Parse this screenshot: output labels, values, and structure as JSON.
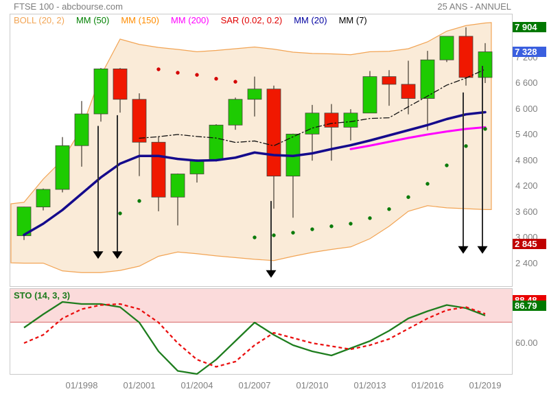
{
  "header": {
    "title": "FTSE 100 - abcbourse.com",
    "period_label": "25 ANS - ANNUEL"
  },
  "legend": [
    {
      "label": "BOLL (20, 2)",
      "color": "#f2a454"
    },
    {
      "label": "MM (50)",
      "color": "#008000"
    },
    {
      "label": "MM (150)",
      "color": "#ff8c00"
    },
    {
      "label": "MM (200)",
      "color": "#ff00ff"
    },
    {
      "label": "SAR (0.02, 0.2)",
      "color": "#e00000"
    },
    {
      "label": "MM (20)",
      "color": "#0000a0"
    },
    {
      "label": "MM (7)",
      "color": "#000000"
    }
  ],
  "chart_data": {
    "type": "candlestick",
    "title": "FTSE 100 annual candlesticks with Bollinger band, moving averages, SAR and stochastic oscillator",
    "years": [
      1995,
      1996,
      1997,
      1998,
      1999,
      2000,
      2001,
      2002,
      2003,
      2004,
      2005,
      2006,
      2007,
      2008,
      2009,
      2010,
      2011,
      2012,
      2013,
      2014,
      2015,
      2016,
      2017,
      2018,
      2019
    ],
    "candles_ohlc": [
      [
        3040,
        3715,
        2940,
        3710
      ],
      [
        3710,
        4140,
        3630,
        4120
      ],
      [
        4120,
        5340,
        4050,
        5140
      ],
      [
        5140,
        6180,
        4650,
        5880
      ],
      [
        5880,
        6950,
        5700,
        6930
      ],
      [
        6930,
        6950,
        5910,
        6220
      ],
      [
        6220,
        6360,
        4430,
        5220
      ],
      [
        5220,
        5360,
        3610,
        3940
      ],
      [
        3940,
        4490,
        3280,
        4480
      ],
      [
        4480,
        4820,
        4280,
        4810
      ],
      [
        4810,
        5640,
        4770,
        5620
      ],
      [
        5620,
        6260,
        5510,
        6220
      ],
      [
        6220,
        6750,
        5820,
        6460
      ],
      [
        6460,
        6540,
        3670,
        4430
      ],
      [
        4430,
        5420,
        3460,
        5410
      ],
      [
        5410,
        6090,
        4790,
        5900
      ],
      [
        5900,
        6110,
        4790,
        5570
      ],
      [
        5570,
        5990,
        5260,
        5900
      ],
      [
        5900,
        6880,
        5900,
        6750
      ],
      [
        6750,
        6900,
        6070,
        6570
      ],
      [
        6570,
        7120,
        5870,
        6240
      ],
      [
        6240,
        7350,
        5500,
        7140
      ],
      [
        7140,
        7690,
        7090,
        7690
      ],
      [
        7690,
        7900,
        6540,
        6730
      ],
      [
        6730,
        7530,
        6600,
        7328
      ]
    ],
    "candle_up_color": "#1ecb02",
    "candle_down_color": "#f01800",
    "bollinger": {
      "fill": "#faebd8",
      "stroke": "#f2a454",
      "points_upper": [
        [
          1994.32,
          3784
        ],
        [
          1995,
          3820
        ],
        [
          1996,
          4360
        ],
        [
          1997,
          4810
        ],
        [
          1998,
          5540
        ],
        [
          1999,
          6776
        ],
        [
          2000,
          7624
        ],
        [
          2001,
          7500
        ],
        [
          2002,
          7430
        ],
        [
          2003,
          7384
        ],
        [
          2004,
          7330
        ],
        [
          2005,
          7360
        ],
        [
          2006,
          7400
        ],
        [
          2007,
          7440
        ],
        [
          2008,
          7390
        ],
        [
          2009,
          7320
        ],
        [
          2010,
          7290
        ],
        [
          2011,
          7280
        ],
        [
          2012,
          7260
        ],
        [
          2013,
          7330
        ],
        [
          2014,
          7340
        ],
        [
          2015,
          7400
        ],
        [
          2016,
          7560
        ],
        [
          2017,
          7810
        ],
        [
          2018,
          7940
        ],
        [
          2019,
          8000
        ],
        [
          2019.32,
          8010
        ]
      ],
      "points_lower": [
        [
          1994.32,
          2408
        ],
        [
          1995,
          2400
        ],
        [
          1996,
          2400
        ],
        [
          1997,
          2220
        ],
        [
          1998,
          2180
        ],
        [
          1999,
          2180
        ],
        [
          2000,
          2230
        ],
        [
          2001,
          2330
        ],
        [
          2002,
          2560
        ],
        [
          2003,
          2660
        ],
        [
          2004,
          2620
        ],
        [
          2005,
          2570
        ],
        [
          2006,
          2530
        ],
        [
          2007,
          2490
        ],
        [
          2008,
          2460
        ],
        [
          2009,
          2560
        ],
        [
          2010,
          2650
        ],
        [
          2011,
          2720
        ],
        [
          2012,
          2780
        ],
        [
          2013,
          2970
        ],
        [
          2014,
          3260
        ],
        [
          2015,
          3610
        ],
        [
          2016,
          3740
        ],
        [
          2017,
          3690
        ],
        [
          2018,
          3670
        ],
        [
          2019,
          3650
        ],
        [
          2019.32,
          3650
        ]
      ]
    },
    "mm20": {
      "color": "#140a8c",
      "width": 3.5,
      "start_year": 1995,
      "values": [
        3060,
        3320,
        3640,
        4020,
        4400,
        4720,
        4900,
        4900,
        4830,
        4790,
        4800,
        4860,
        4980,
        4920,
        4900,
        4960,
        5060,
        5150,
        5260,
        5380,
        5500,
        5620,
        5760,
        5870,
        5920
      ]
    },
    "mm200": {
      "color": "#ff00ff",
      "width": 3,
      "start_year": 2012,
      "values": [
        5060,
        5140,
        5230,
        5320,
        5400,
        5470,
        5530,
        5570
      ]
    },
    "mm7": {
      "color": "#111111",
      "width": 1.3,
      "start_year": 2001,
      "values": [
        5313,
        5349,
        5400,
        5354,
        5317,
        5215,
        5249,
        5137,
        5347,
        5550,
        5659,
        5699,
        5774,
        5790,
        6048,
        6295,
        6551,
        6716,
        6920
      ]
    },
    "sar": {
      "red_color": "#d40000",
      "green_color": "#0b7b0b",
      "red": [
        [
          2002,
          6920
        ],
        [
          2003,
          6840
        ],
        [
          2004,
          6790
        ],
        [
          2005,
          6700
        ],
        [
          2006,
          6630
        ]
      ],
      "green": [
        [
          2000,
          3560
        ],
        [
          2001,
          3850
        ],
        [
          2007,
          3000
        ],
        [
          2008,
          3050
        ],
        [
          2009,
          3110
        ],
        [
          2010,
          3190
        ],
        [
          2011,
          3260
        ],
        [
          2012,
          3320
        ],
        [
          2013,
          3450
        ],
        [
          2014,
          3660
        ],
        [
          2015,
          3940
        ],
        [
          2016,
          4250
        ],
        [
          2017,
          4680
        ],
        [
          2018,
          5130
        ],
        [
          2019,
          5530
        ]
      ]
    },
    "arrows": [
      [
        1999,
        5600,
        2500
      ],
      [
        2000,
        5850,
        2500
      ],
      [
        2008,
        3850,
        2060
      ],
      [
        2018,
        6380,
        2620
      ],
      [
        2019,
        7000,
        2620
      ]
    ],
    "y_axis": {
      "range": [
        1850,
        8050
      ],
      "ticks": [
        {
          "value": 7200,
          "label": "7 200"
        },
        {
          "value": 6600,
          "label": "6 600"
        },
        {
          "value": 6000,
          "label": "6 000"
        },
        {
          "value": 5400,
          "label": "5 400"
        },
        {
          "value": 4800,
          "label": "4 800"
        },
        {
          "value": 4200,
          "label": "4 200"
        },
        {
          "value": 3600,
          "label": "3 600"
        },
        {
          "value": 3000,
          "label": "3 000"
        },
        {
          "value": 2400,
          "label": "2 400"
        }
      ],
      "badges": [
        {
          "value": 7904,
          "label": "7 904",
          "bg": "#007800"
        },
        {
          "value": 7328,
          "label": "7 328",
          "bg": "#3a5fdf"
        },
        {
          "value": 2845,
          "label": "2 845",
          "bg": "#c00000"
        }
      ]
    },
    "x_axis": {
      "labels": [
        {
          "year": 1998,
          "label": "01/1998"
        },
        {
          "year": 2001,
          "label": "01/2001"
        },
        {
          "year": 2004,
          "label": "01/2004"
        },
        {
          "year": 2007,
          "label": "01/2007"
        },
        {
          "year": 2010,
          "label": "01/2010"
        },
        {
          "year": 2013,
          "label": "01/2013"
        },
        {
          "year": 2016,
          "label": "01/2016"
        },
        {
          "year": 2019,
          "label": "01/2019"
        }
      ]
    },
    "sto": {
      "label": "STO (14, 3, 3)",
      "label_color": "#1b7a1b",
      "zone_fill": "#fbdbdb",
      "overbought_level": 80,
      "start_year": 1995,
      "k_color": "#1e7d1e",
      "d_color": "#ea0f0f",
      "k": [
        75,
        88,
        100,
        98,
        98,
        95,
        80,
        52,
        33,
        30,
        44,
        62,
        80,
        68,
        58,
        52,
        48,
        55,
        62,
        72,
        84,
        91,
        97,
        94,
        86.79
      ],
      "d": [
        60,
        68,
        84,
        93,
        97,
        98,
        93,
        80,
        60,
        44,
        37,
        42,
        58,
        70,
        65,
        60,
        57,
        54,
        58,
        64,
        74,
        84,
        92,
        95,
        88.48
      ],
      "badges": [
        {
          "value": 88.48,
          "label": "88.48",
          "bg": "#e80000"
        },
        {
          "value": 86.79,
          "label": "86.79",
          "bg": "#007800"
        }
      ],
      "tick": {
        "value": 60,
        "label": "60.00"
      }
    }
  }
}
